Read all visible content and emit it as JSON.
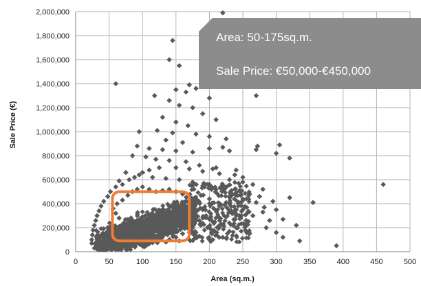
{
  "chart_data": {
    "type": "scatter",
    "title": "",
    "xlabel": "Area (sq.m.)",
    "ylabel": "Sale Price (€)",
    "xlim": [
      0,
      500
    ],
    "ylim": [
      0,
      2000000
    ],
    "grid": true,
    "xticks": [
      0,
      50,
      100,
      150,
      200,
      250,
      300,
      350,
      400,
      450,
      500
    ],
    "yticks": [
      0,
      200000,
      400000,
      600000,
      800000,
      1000000,
      1200000,
      1400000,
      1600000,
      1800000,
      2000000
    ],
    "xtick_labels": [
      "0",
      "50",
      "100",
      "150",
      "200",
      "250",
      "300",
      "350",
      "400",
      "450",
      "500"
    ],
    "ytick_labels": [
      "0",
      "200,000",
      "400,000",
      "600,000",
      "800,000",
      "1,000,000",
      "1,200,000",
      "1,400,000",
      "1,600,000",
      "1,800,000",
      "2,000,000"
    ],
    "marker": "diamond",
    "marker_color": "#595959",
    "series": [
      {
        "points": [
          [
            220,
            1990000
          ],
          [
            145,
            1760000
          ],
          [
            140,
            1600000
          ],
          [
            155,
            1550000
          ],
          [
            60,
            1400000
          ],
          [
            170,
            1390000
          ],
          [
            195,
            1380000
          ],
          [
            180,
            1360000
          ],
          [
            165,
            1330000
          ],
          [
            150,
            1350000
          ],
          [
            118,
            1300000
          ],
          [
            270,
            1300000
          ],
          [
            200,
            1280000
          ],
          [
            140,
            1260000
          ],
          [
            155,
            1220000
          ],
          [
            175,
            1200000
          ],
          [
            190,
            1150000
          ],
          [
            210,
            1100000
          ],
          [
            130,
            1120000
          ],
          [
            150,
            1080000
          ],
          [
            168,
            1050000
          ],
          [
            95,
            1000000
          ],
          [
            122,
            1010000
          ],
          [
            145,
            990000
          ],
          [
            180,
            980000
          ],
          [
            200,
            960000
          ],
          [
            225,
            940000
          ],
          [
            135,
            930000
          ],
          [
            160,
            910000
          ],
          [
            92,
            880000
          ],
          [
            110,
            860000
          ],
          [
            130,
            850000
          ],
          [
            150,
            840000
          ],
          [
            175,
            830000
          ],
          [
            200,
            860000
          ],
          [
            220,
            870000
          ],
          [
            230,
            840000
          ],
          [
            272,
            880000
          ],
          [
            270,
            850000
          ],
          [
            305,
            890000
          ],
          [
            300,
            820000
          ],
          [
            320,
            780000
          ],
          [
            85,
            800000
          ],
          [
            105,
            790000
          ],
          [
            120,
            770000
          ],
          [
            140,
            760000
          ],
          [
            165,
            750000
          ],
          [
            185,
            720000
          ],
          [
            210,
            700000
          ],
          [
            240,
            680000
          ],
          [
            75,
            660000
          ],
          [
            95,
            640000
          ],
          [
            115,
            620000
          ],
          [
            135,
            610000
          ],
          [
            155,
            600000
          ],
          [
            175,
            580000
          ],
          [
            200,
            560000
          ],
          [
            225,
            540000
          ],
          [
            250,
            580000
          ],
          [
            65,
            590000
          ],
          [
            245,
            510000
          ],
          [
            260,
            480000
          ],
          [
            275,
            460000
          ],
          [
            270,
            410000
          ],
          [
            282,
            370000
          ],
          [
            250,
            350000
          ],
          [
            235,
            320000
          ],
          [
            245,
            300000
          ],
          [
            255,
            260000
          ],
          [
            255,
            230000
          ],
          [
            240,
            200000
          ],
          [
            230,
            170000
          ],
          [
            260,
            150000
          ],
          [
            220,
            120000
          ],
          [
            205,
            100000
          ],
          [
            225,
            410000
          ],
          [
            215,
            380000
          ],
          [
            200,
            440000
          ],
          [
            190,
            350000
          ],
          [
            195,
            300000
          ],
          [
            185,
            260000
          ],
          [
            205,
            250000
          ],
          [
            175,
            220000
          ],
          [
            200,
            200000
          ],
          [
            180,
            160000
          ],
          [
            185,
            130000
          ],
          [
            170,
            100000
          ],
          [
            155,
            90000
          ],
          [
            135,
            80000
          ],
          [
            115,
            75000
          ],
          [
            95,
            70000
          ],
          [
            80,
            60000
          ],
          [
            60,
            55000
          ],
          [
            45,
            50000
          ],
          [
            30,
            40000
          ],
          [
            35,
            60000
          ],
          [
            40,
            90000
          ],
          [
            48,
            110000
          ],
          [
            55,
            130000
          ],
          [
            58,
            150000
          ],
          [
            62,
            180000
          ],
          [
            50,
            160000
          ],
          [
            45,
            140000
          ],
          [
            68,
            200000
          ],
          [
            72,
            240000
          ],
          [
            65,
            280000
          ],
          [
            60,
            320000
          ],
          [
            56,
            360000
          ],
          [
            62,
            400000
          ],
          [
            70,
            430000
          ],
          [
            78,
            470000
          ],
          [
            85,
            500000
          ],
          [
            92,
            520000
          ],
          [
            100,
            540000
          ],
          [
            110,
            520000
          ],
          [
            120,
            500000
          ],
          [
            130,
            510000
          ],
          [
            140,
            520000
          ],
          [
            150,
            500000
          ],
          [
            160,
            480000
          ],
          [
            170,
            460000
          ],
          [
            180,
            440000
          ],
          [
            185,
            410000
          ],
          [
            175,
            380000
          ],
          [
            165,
            360000
          ],
          [
            170,
            320000
          ],
          [
            165,
            300000
          ],
          [
            160,
            270000
          ],
          [
            168,
            240000
          ],
          [
            175,
            200000
          ],
          [
            160,
            150000
          ],
          [
            150,
            120000
          ],
          [
            140,
            100000
          ],
          [
            120,
            110000
          ],
          [
            100,
            100000
          ],
          [
            85,
            110000
          ],
          [
            70,
            120000
          ],
          [
            75,
            150000
          ],
          [
            80,
            130000
          ],
          [
            90,
            140000
          ],
          [
            320,
            450000
          ],
          [
            355,
            410000
          ],
          [
            390,
            50000
          ],
          [
            460,
            560000
          ],
          [
            310,
            270000
          ],
          [
            330,
            220000
          ],
          [
            290,
            260000
          ],
          [
            285,
            200000
          ],
          [
            300,
            160000
          ],
          [
            310,
            120000
          ],
          [
            335,
            90000
          ],
          [
            265,
            300000
          ],
          [
            280,
            330000
          ],
          [
            300,
            350000
          ],
          [
            295,
            420000
          ],
          [
            280,
            520000
          ],
          [
            265,
            560000
          ],
          [
            250,
            620000
          ],
          [
            238,
            640000
          ],
          [
            230,
            600000
          ],
          [
            215,
            650000
          ],
          [
            205,
            690000
          ],
          [
            190,
            670000
          ],
          [
            170,
            690000
          ],
          [
            150,
            700000
          ],
          [
            125,
            700000
          ],
          [
            110,
            680000
          ],
          [
            100,
            660000
          ],
          [
            88,
            620000
          ],
          [
            80,
            600000
          ],
          [
            70,
            560000
          ],
          [
            60,
            540000
          ],
          [
            52,
            500000
          ],
          [
            48,
            460000
          ],
          [
            42,
            420000
          ],
          [
            38,
            380000
          ],
          [
            35,
            340000
          ],
          [
            32,
            300000
          ],
          [
            30,
            260000
          ],
          [
            28,
            220000
          ],
          [
            26,
            180000
          ],
          [
            25,
            140000
          ],
          [
            24,
            100000
          ],
          [
            24,
            70000
          ],
          [
            28,
            30000
          ]
        ]
      }
    ],
    "annotations": [
      {
        "type": "box",
        "color": "#ed7d31",
        "x_range": [
          55,
          170
        ],
        "y_range": [
          90000,
          500000
        ]
      },
      {
        "type": "callout",
        "background": "#8c8c8c",
        "lines": [
          "Area: 50-175sq.m.",
          "Sale Price: €50,000-€450,000"
        ]
      }
    ]
  }
}
